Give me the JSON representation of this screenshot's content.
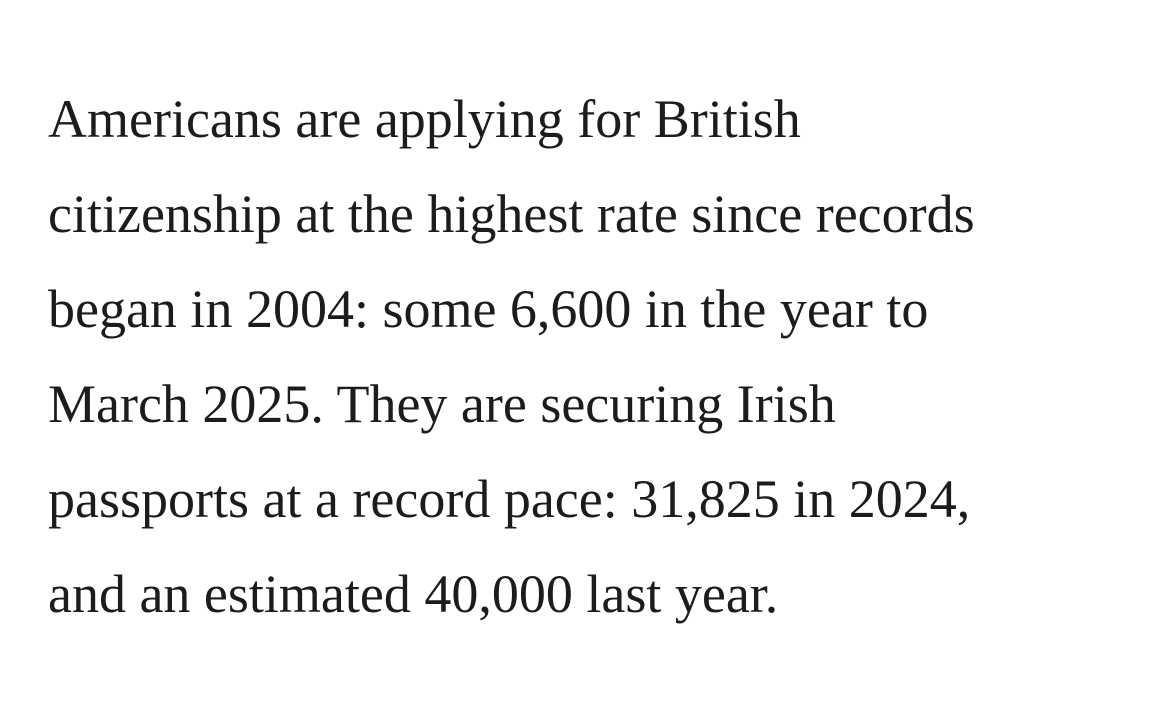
{
  "article": {
    "lines": [
      "Americans are applying for British",
      "citizenship at the highest rate since records",
      "began in 2004: some 6,600 in the year to",
      "March 2025. They are securing Irish",
      "passports at a record pace: 31,825 in 2024,",
      "and an estimated 40,000 last year."
    ]
  }
}
